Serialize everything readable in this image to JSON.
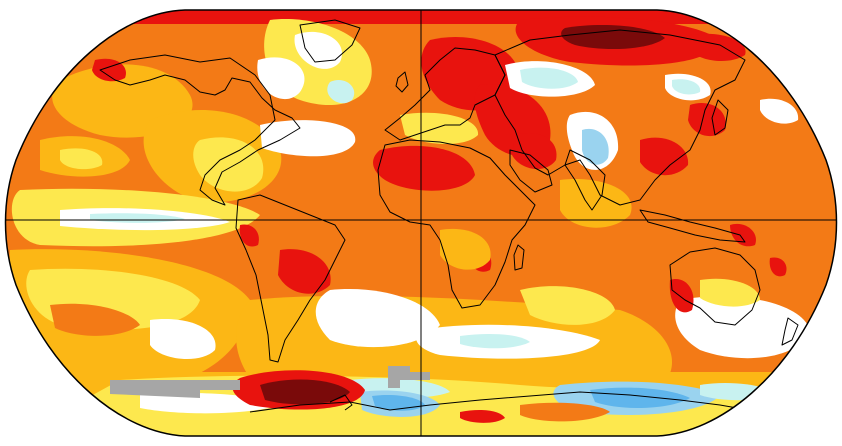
{
  "map": {
    "projection": "robinson-like",
    "gridlines": [
      "equator",
      "prime-meridian"
    ],
    "colors": {
      "dark_red": "#7a0a0a",
      "red": "#e8130e",
      "orange": "#f37a16",
      "gold": "#fcb715",
      "yellow": "#fde84e",
      "white": "#ffffff",
      "light_cyan": "#c8f2f0",
      "light_blue": "#9ad3ef",
      "blue": "#5fb5ec",
      "no_data": "#a6a6a6"
    }
  }
}
